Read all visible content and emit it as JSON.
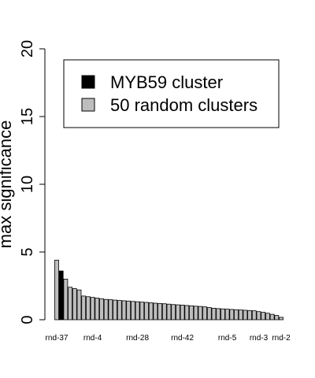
{
  "chart_data": {
    "type": "bar",
    "ylabel": "max significance",
    "ylim": [
      0,
      20
    ],
    "yticks": [
      0,
      5,
      10,
      15,
      20
    ],
    "legend": {
      "position": "top-right",
      "entries": [
        {
          "name": "MYB59 cluster",
          "color": "#000000"
        },
        {
          "name": "50 random clusters",
          "color": "#bebebe"
        }
      ]
    },
    "category_labels": [
      {
        "index": 0,
        "label": "rnd-37"
      },
      {
        "index": 8,
        "label": "rnd-4"
      },
      {
        "index": 18,
        "label": "rnd-28"
      },
      {
        "index": 28,
        "label": "rnd-42"
      },
      {
        "index": 38,
        "label": "rnd-5"
      },
      {
        "index": 45,
        "label": "rnd-3"
      },
      {
        "index": 50,
        "label": "rnd-2"
      }
    ],
    "highlight_index": 1,
    "values": [
      4.4,
      3.6,
      3.0,
      2.4,
      2.3,
      2.2,
      1.75,
      1.7,
      1.65,
      1.6,
      1.55,
      1.5,
      1.48,
      1.45,
      1.42,
      1.4,
      1.38,
      1.35,
      1.33,
      1.3,
      1.28,
      1.25,
      1.22,
      1.2,
      1.18,
      1.15,
      1.12,
      1.1,
      1.08,
      1.05,
      1.03,
      1.0,
      0.98,
      0.95,
      0.9,
      0.85,
      0.82,
      0.8,
      0.78,
      0.76,
      0.74,
      0.72,
      0.7,
      0.68,
      0.66,
      0.6,
      0.55,
      0.48,
      0.4,
      0.32,
      0.18
    ]
  }
}
